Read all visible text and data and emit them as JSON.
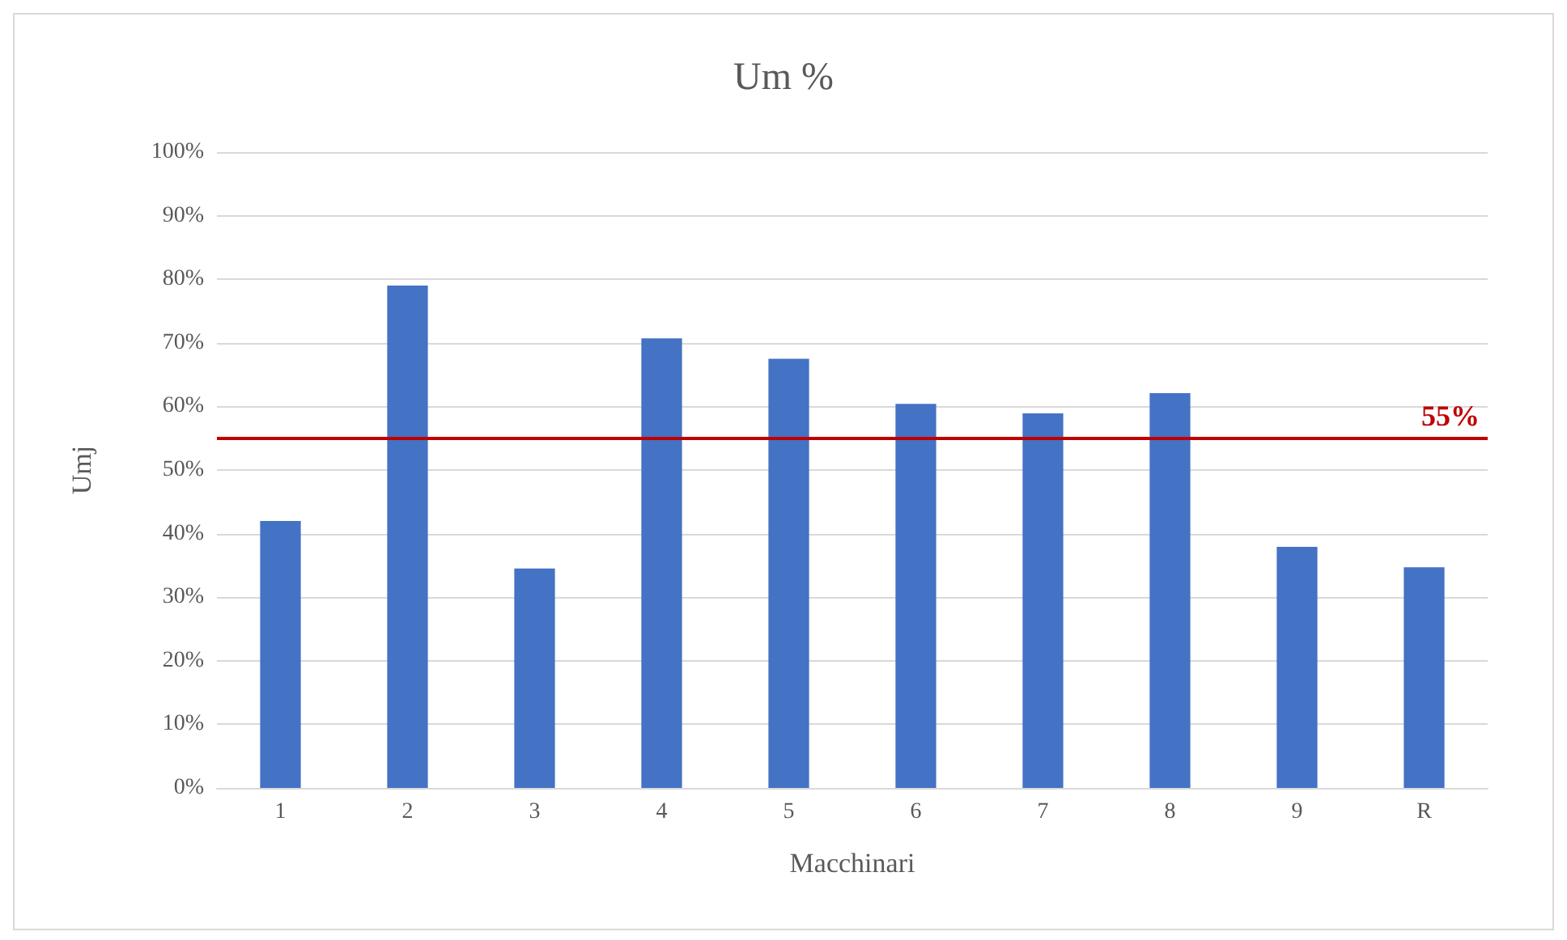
{
  "chart_data": {
    "type": "bar",
    "title": "Um %",
    "xlabel": "Macchinari",
    "ylabel": "Umj",
    "categories": [
      "1",
      "2",
      "3",
      "4",
      "5",
      "6",
      "7",
      "8",
      "9",
      "R"
    ],
    "values": [
      42,
      79,
      34.5,
      70.7,
      67.5,
      60.4,
      58.9,
      62.1,
      37.9,
      34.7
    ],
    "color": "#4472c4",
    "ylim": [
      0,
      100
    ],
    "yticks": [
      {
        "value": 0,
        "label": "0%"
      },
      {
        "value": 10,
        "label": "10%"
      },
      {
        "value": 20,
        "label": "20%"
      },
      {
        "value": 30,
        "label": "30%"
      },
      {
        "value": 40,
        "label": "40%"
      },
      {
        "value": 50,
        "label": "50%"
      },
      {
        "value": 60,
        "label": "60%"
      },
      {
        "value": 70,
        "label": "70%"
      },
      {
        "value": 80,
        "label": "80%"
      },
      {
        "value": 90,
        "label": "90%"
      },
      {
        "value": 100,
        "label": "100%"
      }
    ],
    "grid": "y",
    "ref_lines": [
      {
        "axis": "y",
        "value": 55,
        "label": "55%",
        "color": "#c00000"
      }
    ]
  }
}
